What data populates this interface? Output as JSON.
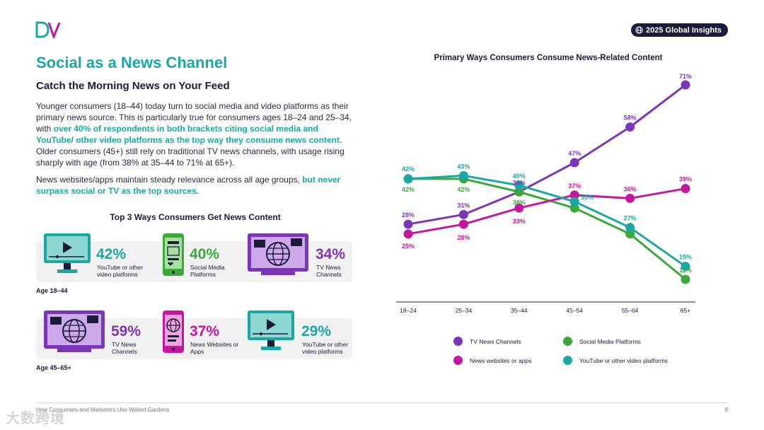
{
  "brand": {
    "logo_text": "DV"
  },
  "badge": {
    "label": "2025 Global Insights"
  },
  "header": {
    "title": "Social as a News Channel",
    "subtitle": "Catch the Morning News on Your Feed"
  },
  "body": {
    "p1_a": "Younger consumers (18–44) today turn to social media and video platforms as their primary news source. This is particularly true for consumers ages 18–24 and 25–34, with ",
    "p1_hl": "over 40% of respondents in both brackets citing social media and YouTube/ other video platforms as the top way they consume news content.",
    "p1_b": " Older consumers (45+)  still rely on traditional TV news channels, with usage rising sharply with age (from 38% at 35–44 to 71% at 65+).",
    "p2_a": "News websites/apps maintain steady relevance across all age groups, ",
    "p2_hl": "but never surpass social or TV as the top sources."
  },
  "top3": {
    "heading": "Top 3 Ways Consumers Get News Content",
    "groups": [
      {
        "age": "Age 18–44",
        "items": [
          {
            "icon": "video-player-icon",
            "pct": "42%",
            "label": "YouTube or other video platforms",
            "color": "#1aa8a3"
          },
          {
            "icon": "smartphone-social-icon",
            "pct": "40%",
            "label": "Social Media Platforms",
            "color": "#3aa93a"
          },
          {
            "icon": "tv-globe-icon",
            "pct": "34%",
            "label": "TV News Channels",
            "color": "#7b35b8"
          }
        ]
      },
      {
        "age": "Age 45–65+",
        "items": [
          {
            "icon": "tv-globe-icon",
            "pct": "59%",
            "label": "TV News Channels",
            "color": "#7b35b8"
          },
          {
            "icon": "smartphone-globe-icon",
            "pct": "37%",
            "label": "News Websites or Apps",
            "color": "#c4169f"
          },
          {
            "icon": "video-player-icon",
            "pct": "29%",
            "label": "YouTube or other video platforms",
            "color": "#1aa8a3"
          }
        ]
      }
    ]
  },
  "chart_data": {
    "type": "line",
    "title": "Primary Ways Consumers Consume News-Related Content",
    "categories": [
      "18–24",
      "25–34",
      "35–44",
      "45–54",
      "55–64",
      "65+"
    ],
    "ylim": [
      0,
      80
    ],
    "grid": false,
    "legend_position": "bottom",
    "series": [
      {
        "name": "TV News Channels",
        "color": "#7b35b8",
        "values": [
          28,
          31,
          38,
          47,
          58,
          71
        ],
        "labels": [
          "28%",
          "31%",
          "38%",
          "47%",
          "58%",
          "71%"
        ]
      },
      {
        "name": "Social Media Platforms",
        "color": "#3aa93a",
        "values": [
          42,
          42,
          38,
          33,
          25,
          11
        ],
        "labels": [
          "42%",
          "42%",
          "38%",
          "",
          "",
          "11%"
        ]
      },
      {
        "name": "News websites or apps",
        "color": "#c4169f",
        "values": [
          25,
          28,
          33,
          37,
          36,
          39
        ],
        "labels": [
          "25%",
          "28%",
          "33%",
          "37%",
          "36%",
          "39%"
        ]
      },
      {
        "name": "YouTube or other video platforms",
        "color": "#1aa8a3",
        "values": [
          42,
          43,
          40,
          35,
          27,
          15
        ],
        "labels": [
          "42%",
          "43%",
          "40%",
          "35%",
          "27%",
          "15%"
        ]
      }
    ]
  },
  "legend": {
    "tv": "TV News Channels",
    "social": "Social Media Platforms",
    "web": "News websites or apps",
    "youtube": "YouTube or other video platforms"
  },
  "footer": {
    "text": "How Consumers and Marketers Use Walled Gardens",
    "page": "8",
    "watermark": "大数跨境"
  }
}
